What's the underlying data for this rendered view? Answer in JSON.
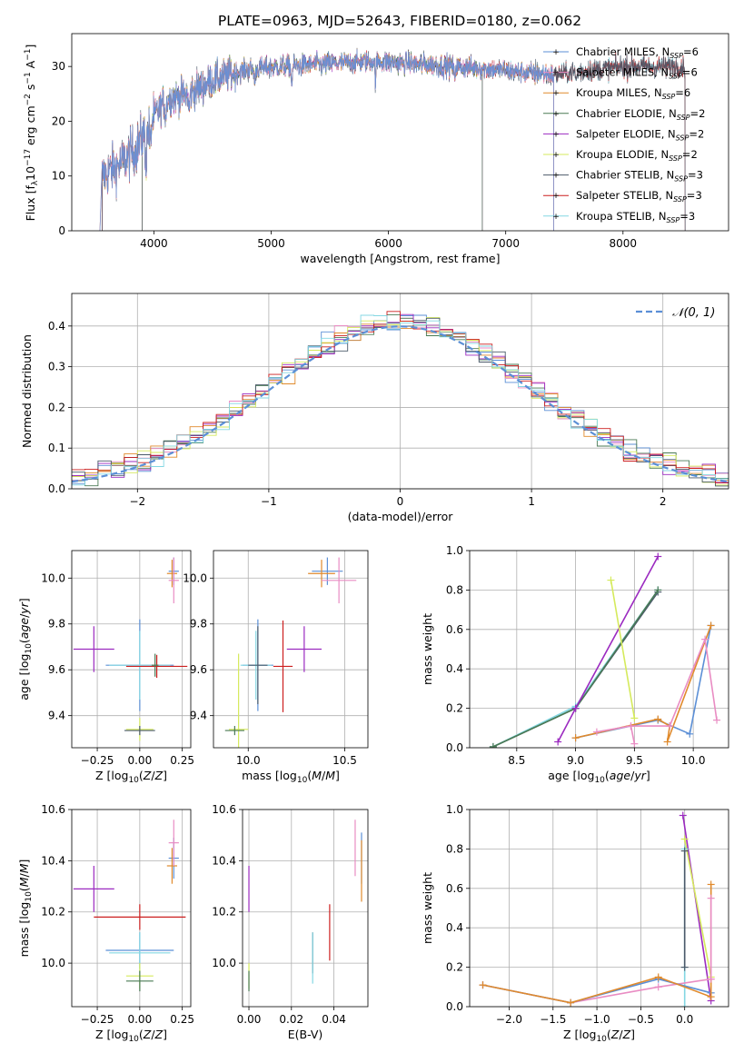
{
  "figure": {
    "title": "PLATE=0963, MJD=52643, FIBERID=0180, z=0.062"
  },
  "colors": {
    "Chabrier MILES": "#5b8fd6",
    "Salpeter MILES": "#e98cc3",
    "Kroupa MILES": "#e08a2c",
    "Chabrier ELODIE": "#4a7a55",
    "Salpeter ELODIE": "#9b2ac0",
    "Kroupa ELODIE": "#d5ea5c",
    "Chabrier STELIB": "#4b5a6a",
    "Salpeter STELIB": "#cc1f1f",
    "Kroupa STELIB": "#84d7e3",
    "normal": "#5b8fd6"
  },
  "chart_data": [
    {
      "id": "spectrum",
      "type": "line",
      "title": "PLATE=0963, MJD=52643, FIBERID=0180, z=0.062",
      "xlabel": "wavelength [Angstrom, rest frame]",
      "ylabel_parts": [
        "Flux [f",
        "λ",
        "10",
        "−17",
        " erg cm",
        "−2",
        " s",
        "−1",
        " A",
        "−1",
        "]"
      ],
      "xlim": [
        3300,
        8900
      ],
      "ylim": [
        0,
        36
      ],
      "xticks": [
        4000,
        5000,
        6000,
        7000,
        8000
      ],
      "yticks": [
        0,
        10,
        20,
        30
      ],
      "grid": false,
      "legend_position": "upper-right",
      "legend": [
        {
          "name": "Chabrier MILES",
          "n": "6"
        },
        {
          "name": "Salpeter MILES",
          "n": "6"
        },
        {
          "name": "Kroupa MILES",
          "n": "6"
        },
        {
          "name": "Chabrier ELODIE",
          "n": "2"
        },
        {
          "name": "Salpeter ELODIE",
          "n": "2"
        },
        {
          "name": "Kroupa ELODIE",
          "n": "2"
        },
        {
          "name": "Chabrier STELIB",
          "n": "3"
        },
        {
          "name": "Salpeter STELIB",
          "n": "3"
        },
        {
          "name": "Kroupa STELIB",
          "n": "3"
        }
      ],
      "continuum_points": [
        [
          3560,
          10
        ],
        [
          3700,
          12
        ],
        [
          3850,
          15
        ],
        [
          3950,
          19
        ],
        [
          4100,
          24
        ],
        [
          4300,
          25
        ],
        [
          4500,
          27.5
        ],
        [
          4800,
          29.5
        ],
        [
          5100,
          30
        ],
        [
          5500,
          30.5
        ],
        [
          5900,
          31
        ],
        [
          6200,
          30.5
        ],
        [
          6600,
          30
        ],
        [
          6900,
          29.5
        ],
        [
          7100,
          29
        ],
        [
          7400,
          28.5
        ],
        [
          7600,
          29
        ],
        [
          8000,
          30
        ],
        [
          8500,
          30
        ]
      ]
    },
    {
      "id": "residuals",
      "type": "line",
      "xlabel": "(data-model)/error",
      "ylabel": "Normed distribution",
      "xlim": [
        -2.5,
        2.5
      ],
      "ylim": [
        0,
        0.48
      ],
      "xticks": [
        -2,
        -1,
        0,
        1,
        2
      ],
      "xtick_labels": [
        "−2",
        "−1",
        "0",
        "1",
        "2"
      ],
      "yticks": [
        0,
        0.1,
        0.2,
        0.3,
        0.4
      ],
      "ytick_labels": [
        "0.0",
        "0.1",
        "0.2",
        "0.3",
        "0.4"
      ],
      "grid": true,
      "legend_position": "upper-right",
      "series": [
        {
          "name": "𝒩(0, 1)",
          "kind": "normal",
          "mu": 0,
          "sigma": 1
        }
      ]
    },
    {
      "id": "age-Z",
      "type": "scatter",
      "xlabel": "Z [log10(Z/Z⊙)]",
      "ylabel": "age  [log10(age/yr)]",
      "xlim": [
        -0.4,
        0.3
      ],
      "ylim": [
        9.26,
        10.12
      ],
      "xticks": [
        -0.25,
        0,
        0.25
      ],
      "xtick_labels": [
        "−0.25",
        "0.00",
        "0.25"
      ],
      "yticks": [
        9.4,
        9.6,
        9.8,
        10.0
      ],
      "ytick_labels": [
        "9.4",
        "9.6",
        "9.8",
        "10.0"
      ],
      "grid": true,
      "points": [
        {
          "series": "Salpeter ELODIE",
          "x": -0.27,
          "y": 9.69,
          "xerr": 0.12,
          "yerr": 0.1
        },
        {
          "series": "Chabrier MILES",
          "x": 0.0,
          "y": 9.62,
          "xerr": 0.2,
          "yerr": 0.2
        },
        {
          "series": "Kroupa STELIB",
          "x": 0.0,
          "y": 9.62,
          "xerr": 0.18,
          "yerr": 0.15
        },
        {
          "series": "Salpeter STELIB",
          "x": 0.1,
          "y": 9.615,
          "xerr": 0.18,
          "yerr": 0.05
        },
        {
          "series": "Chabrier ELODIE",
          "x": 0.09,
          "y": 9.62,
          "xerr": 0.02,
          "yerr": 0.05
        },
        {
          "series": "Kroupa ELODIE",
          "x": 0.0,
          "y": 9.34,
          "xerr": 0.08,
          "yerr": 0.05
        },
        {
          "series": "Chabrier STELIB",
          "x": 0.0,
          "y": 9.335,
          "xerr": 0.09,
          "yerr": 0.02
        },
        {
          "series": "Chabrier MILES",
          "x": 0.2,
          "y": 10.03,
          "xerr": 0.03,
          "yerr": 0.06
        },
        {
          "series": "Kroupa MILES",
          "x": 0.19,
          "y": 10.02,
          "xerr": 0.03,
          "yerr": 0.06
        },
        {
          "series": "Salpeter MILES",
          "x": 0.2,
          "y": 9.99,
          "xerr": 0.03,
          "yerr": 0.1
        }
      ]
    },
    {
      "id": "age-mass",
      "type": "scatter",
      "xlabel": "mass [log10(M/M⊙)]",
      "xlim": [
        9.82,
        10.62
      ],
      "ylim": [
        9.26,
        10.12
      ],
      "xticks": [
        10.0,
        10.5
      ],
      "xtick_labels": [
        "10.0",
        "10.5"
      ],
      "yticks": [
        9.4,
        9.6,
        9.8,
        10.0
      ],
      "ytick_labels": [
        "9.4",
        "9.6",
        "9.8",
        "10.0"
      ],
      "grid": true,
      "points": [
        {
          "series": "Salpeter ELODIE",
          "x": 10.29,
          "y": 9.69,
          "xerr": 0.09,
          "yerr": 0.1
        },
        {
          "series": "Chabrier MILES",
          "x": 10.05,
          "y": 9.62,
          "xerr": 0.08,
          "yerr": 0.2
        },
        {
          "series": "Kroupa STELIB",
          "x": 10.04,
          "y": 9.62,
          "xerr": 0.08,
          "yerr": 0.15
        },
        {
          "series": "Salpeter STELIB",
          "x": 10.18,
          "y": 9.615,
          "xerr": 0.05,
          "yerr": 0.2
        },
        {
          "series": "Chabrier STELIB",
          "x": 10.05,
          "y": 9.62,
          "xerr": 0.05,
          "yerr": 0.17
        },
        {
          "series": "Kroupa ELODIE",
          "x": 9.95,
          "y": 9.34,
          "xerr": 0.05,
          "yerr": 0.33
        },
        {
          "series": "Chabrier ELODIE",
          "x": 9.93,
          "y": 9.335,
          "xerr": 0.05,
          "yerr": 0.02
        },
        {
          "series": "Chabrier MILES",
          "x": 10.41,
          "y": 10.03,
          "xerr": 0.08,
          "yerr": 0.06
        },
        {
          "series": "Kroupa MILES",
          "x": 10.38,
          "y": 10.02,
          "xerr": 0.07,
          "yerr": 0.06
        },
        {
          "series": "Salpeter MILES",
          "x": 10.47,
          "y": 9.99,
          "xerr": 0.09,
          "yerr": 0.1
        }
      ]
    },
    {
      "id": "weight-age",
      "type": "line",
      "xlabel": "age  [log10(age/yr)]",
      "ylabel": "mass weight",
      "xlim": [
        8.1,
        10.3
      ],
      "ylim": [
        0,
        1.0
      ],
      "xticks": [
        8.5,
        9.0,
        9.5,
        10.0
      ],
      "xtick_labels": [
        "8.5",
        "9.0",
        "9.5",
        "10.0"
      ],
      "yticks": [
        0,
        0.2,
        0.4,
        0.6,
        0.8,
        1.0
      ],
      "ytick_labels": [
        "0.0",
        "0.2",
        "0.4",
        "0.6",
        "0.8",
        "1.0"
      ],
      "grid": true,
      "series": [
        {
          "name": "Chabrier STELIB",
          "x": [
            8.3,
            9.0,
            9.7
          ],
          "y": [
            0.005,
            0.2,
            0.79
          ]
        },
        {
          "name": "Kroupa STELIB",
          "x": [
            8.3,
            9.0,
            9.7
          ],
          "y": [
            0.005,
            0.21,
            0.8
          ]
        },
        {
          "name": "Chabrier ELODIE",
          "x": [
            8.3,
            9.0,
            9.7
          ],
          "y": [
            0.005,
            0.2,
            0.8
          ]
        },
        {
          "name": "Salpeter ELODIE",
          "x": [
            8.85,
            9.0,
            9.7
          ],
          "y": [
            0.03,
            0.2,
            0.97
          ]
        },
        {
          "name": "Kroupa ELODIE",
          "x": [
            9.3,
            9.5
          ],
          "y": [
            0.85,
            0.15
          ]
        },
        {
          "name": "Chabrier MILES",
          "x": [
            9.0,
            9.7,
            9.97,
            10.15
          ],
          "y": [
            0.05,
            0.14,
            0.07,
            0.62
          ]
        },
        {
          "name": "Kroupa MILES",
          "x": [
            9.0,
            9.7,
            9.8,
            9.78,
            10.15
          ],
          "y": [
            0.05,
            0.145,
            0.11,
            0.03,
            0.62
          ]
        },
        {
          "name": "Salpeter MILES",
          "x": [
            9.18,
            9.47,
            9.8,
            10.1,
            10.2
          ],
          "y": [
            0.08,
            0.11,
            0.11,
            0.55,
            0.14
          ]
        },
        {
          "name": "Salpeter MILES",
          "x": [
            9.47,
            9.5
          ],
          "y": [
            0.11,
            0.02
          ]
        }
      ]
    },
    {
      "id": "mass-Z",
      "type": "scatter",
      "xlabel": "Z [log10(Z/Z⊙)]",
      "ylabel": "mass [log10(M/M⊙)]",
      "xlim": [
        -0.4,
        0.3
      ],
      "ylim": [
        9.83,
        10.6
      ],
      "xticks": [
        -0.25,
        0,
        0.25
      ],
      "xtick_labels": [
        "−0.25",
        "0.00",
        "0.25"
      ],
      "yticks": [
        10.0,
        10.2,
        10.4,
        10.6
      ],
      "ytick_labels": [
        "10.0",
        "10.2",
        "10.4",
        "10.6"
      ],
      "grid": true,
      "points": [
        {
          "series": "Salpeter ELODIE",
          "x": -0.27,
          "y": 10.29,
          "xerr": 0.12,
          "yerr": 0.09
        },
        {
          "series": "Salpeter STELIB",
          "x": 0.0,
          "y": 10.18,
          "xerr": 0.27,
          "yerr": 0.05
        },
        {
          "series": "Chabrier MILES",
          "x": 0.0,
          "y": 10.05,
          "xerr": 0.2,
          "yerr": 0.07
        },
        {
          "series": "Kroupa STELIB",
          "x": 0.0,
          "y": 10.04,
          "xerr": 0.18,
          "yerr": 0.08
        },
        {
          "series": "Kroupa ELODIE",
          "x": 0.0,
          "y": 9.95,
          "xerr": 0.08,
          "yerr": 0.05
        },
        {
          "series": "Chabrier ELODIE",
          "x": 0.0,
          "y": 9.93,
          "xerr": 0.08,
          "yerr": 0.04
        },
        {
          "series": "Chabrier MILES",
          "x": 0.2,
          "y": 10.41,
          "xerr": 0.03,
          "yerr": 0.08
        },
        {
          "series": "Kroupa MILES",
          "x": 0.19,
          "y": 10.38,
          "xerr": 0.03,
          "yerr": 0.07
        },
        {
          "series": "Salpeter MILES",
          "x": 0.2,
          "y": 10.47,
          "xerr": 0.03,
          "yerr": 0.09
        }
      ]
    },
    {
      "id": "mass-ebv",
      "type": "scatter",
      "xlabel": "E(B-V)",
      "xlim": [
        -0.003,
        0.056
      ],
      "ylim": [
        9.83,
        10.6
      ],
      "xticks": [
        0.0,
        0.02,
        0.04
      ],
      "xtick_labels": [
        "0.00",
        "0.02",
        "0.04"
      ],
      "yticks": [
        10.0,
        10.2,
        10.4,
        10.6
      ],
      "ytick_labels": [
        "10.0",
        "10.2",
        "10.4",
        "10.6"
      ],
      "grid": true,
      "points": [
        {
          "series": "Salpeter ELODIE",
          "x": 0.0,
          "y": 10.29,
          "xerr": 0,
          "yerr": 0.09
        },
        {
          "series": "Kroupa ELODIE",
          "x": 0.0,
          "y": 9.95,
          "xerr": 0,
          "yerr": 0.05
        },
        {
          "series": "Chabrier ELODIE",
          "x": 0.0,
          "y": 9.93,
          "xerr": 0,
          "yerr": 0.04
        },
        {
          "series": "Chabrier STELIB",
          "x": 0.03,
          "y": 10.04,
          "xerr": 0,
          "yerr": 0.08
        },
        {
          "series": "Kroupa STELIB",
          "x": 0.03,
          "y": 10.02,
          "xerr": 0,
          "yerr": 0.1
        },
        {
          "series": "Salpeter STELIB",
          "x": 0.038,
          "y": 10.12,
          "xerr": 0,
          "yerr": 0.11
        },
        {
          "series": "Salpeter MILES",
          "x": 0.05,
          "y": 10.45,
          "xerr": 0,
          "yerr": 0.11
        },
        {
          "series": "Chabrier MILES",
          "x": 0.053,
          "y": 10.41,
          "xerr": 0,
          "yerr": 0.1
        },
        {
          "series": "Kroupa MILES",
          "x": 0.053,
          "y": 10.36,
          "xerr": 0,
          "yerr": 0.12
        }
      ]
    },
    {
      "id": "weight-Z",
      "type": "line",
      "xlabel": "Z [log10(Z/Z⊙)]",
      "ylabel": "mass weight",
      "xlim": [
        -2.45,
        0.5
      ],
      "ylim": [
        0,
        1.0
      ],
      "xticks": [
        -2.0,
        -1.5,
        -1.0,
        -0.5,
        0.0
      ],
      "xtick_labels": [
        "−2.0",
        "−1.5",
        "−1.0",
        "−0.5",
        "0.0"
      ],
      "yticks": [
        0,
        0.2,
        0.4,
        0.6,
        0.8,
        1.0
      ],
      "ytick_labels": [
        "0.0",
        "0.2",
        "0.4",
        "0.6",
        "0.8",
        "1.0"
      ],
      "grid": true,
      "series": [
        {
          "name": "Salpeter ELODIE",
          "x": [
            -0.02,
            0.3
          ],
          "y": [
            0.97,
            0.03
          ]
        },
        {
          "name": "Kroupa ELODIE",
          "x": [
            0.0,
            0.3
          ],
          "y": [
            0.85,
            0.15
          ]
        },
        {
          "name": "Kroupa STELIB",
          "x": [
            0.0,
            0.0
          ],
          "y": [
            0.0,
            0.8
          ]
        },
        {
          "name": "Chabrier STELIB",
          "x": [
            0.0,
            0.0
          ],
          "y": [
            0.2,
            0.79
          ]
        },
        {
          "name": "Salpeter MILES",
          "x": [
            -2.3,
            -1.3,
            -0.3,
            0.3
          ],
          "y": [
            0.11,
            0.02,
            0.1,
            0.14
          ]
        },
        {
          "name": "Chabrier MILES",
          "x": [
            -2.3,
            -1.3,
            -0.3,
            0.3
          ],
          "y": [
            0.11,
            0.02,
            0.14,
            0.07
          ]
        },
        {
          "name": "Kroupa MILES",
          "x": [
            -2.3,
            -1.3,
            -0.3,
            0.3,
            0.3
          ],
          "y": [
            0.11,
            0.02,
            0.15,
            0.05,
            0.62
          ]
        },
        {
          "name": "Salpeter MILES",
          "x": [
            0.3,
            0.3
          ],
          "y": [
            0.55,
            0.14
          ]
        }
      ]
    }
  ]
}
